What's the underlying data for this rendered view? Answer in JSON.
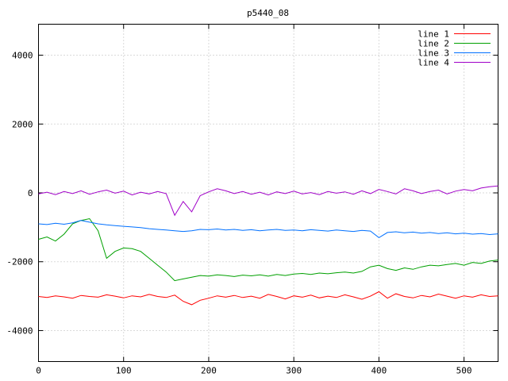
{
  "title": "p5440_08",
  "chart_data": {
    "type": "line",
    "title": "p5440_08",
    "xlabel": "",
    "ylabel": "",
    "xlim": [
      0,
      540
    ],
    "ylim": [
      -4900,
      4900
    ],
    "xticks": [
      0,
      100,
      200,
      300,
      400,
      500
    ],
    "yticks": [
      -4000,
      -2000,
      0,
      2000,
      4000
    ],
    "grid": true,
    "legend_position": "top-right",
    "x_start": 0,
    "x_step": 10,
    "series": [
      {
        "name": "line 1",
        "color": "#ff0000",
        "values": [
          -3010,
          -3040,
          -2990,
          -3020,
          -3060,
          -2980,
          -3010,
          -3030,
          -2960,
          -3000,
          -3050,
          -2990,
          -3020,
          -2950,
          -3010,
          -3040,
          -2970,
          -3150,
          -3250,
          -3120,
          -3060,
          -2990,
          -3030,
          -2980,
          -3040,
          -3000,
          -3060,
          -2950,
          -3010,
          -3080,
          -2990,
          -3030,
          -2970,
          -3050,
          -3000,
          -3040,
          -2960,
          -3020,
          -3090,
          -3000,
          -2870,
          -3060,
          -2930,
          -3010,
          -3050,
          -2980,
          -3020,
          -2940,
          -3000,
          -3060,
          -2990,
          -3030,
          -2960,
          -3010,
          -2990
        ]
      },
      {
        "name": "line 2",
        "color": "#00a000",
        "values": [
          -1350,
          -1280,
          -1400,
          -1200,
          -900,
          -800,
          -750,
          -1100,
          -1900,
          -1700,
          -1600,
          -1620,
          -1700,
          -1900,
          -2100,
          -2300,
          -2550,
          -2500,
          -2450,
          -2400,
          -2420,
          -2380,
          -2400,
          -2430,
          -2390,
          -2410,
          -2380,
          -2420,
          -2370,
          -2400,
          -2360,
          -2340,
          -2370,
          -2330,
          -2350,
          -2320,
          -2300,
          -2330,
          -2280,
          -2150,
          -2100,
          -2200,
          -2250,
          -2180,
          -2220,
          -2150,
          -2100,
          -2120,
          -2080,
          -2050,
          -2100,
          -2020,
          -2050,
          -1980,
          -1950
        ]
      },
      {
        "name": "line 3",
        "color": "#0070ff",
        "values": [
          -900,
          -920,
          -880,
          -910,
          -870,
          -800,
          -850,
          -900,
          -930,
          -950,
          -970,
          -990,
          -1010,
          -1040,
          -1060,
          -1080,
          -1100,
          -1120,
          -1100,
          -1060,
          -1070,
          -1050,
          -1080,
          -1060,
          -1090,
          -1070,
          -1100,
          -1080,
          -1060,
          -1090,
          -1080,
          -1100,
          -1070,
          -1090,
          -1110,
          -1080,
          -1100,
          -1120,
          -1090,
          -1110,
          -1300,
          -1150,
          -1130,
          -1160,
          -1140,
          -1170,
          -1150,
          -1180,
          -1160,
          -1190,
          -1170,
          -1200,
          -1180,
          -1210,
          -1190
        ]
      },
      {
        "name": "line 4",
        "color": "#a000c8",
        "values": [
          -30,
          20,
          -50,
          40,
          -20,
          60,
          -40,
          30,
          80,
          -10,
          50,
          -60,
          20,
          -30,
          40,
          -20,
          -650,
          -250,
          -550,
          -80,
          30,
          120,
          60,
          -20,
          40,
          -40,
          20,
          -60,
          30,
          -20,
          50,
          -30,
          10,
          -50,
          40,
          -10,
          30,
          -40,
          60,
          -20,
          100,
          40,
          -30,
          120,
          60,
          -20,
          40,
          80,
          -30,
          50,
          100,
          60,
          140,
          180,
          200
        ]
      }
    ],
    "colors": {
      "border": "#000000",
      "grid": "#b4b4b4",
      "background": "#ffffff"
    }
  }
}
